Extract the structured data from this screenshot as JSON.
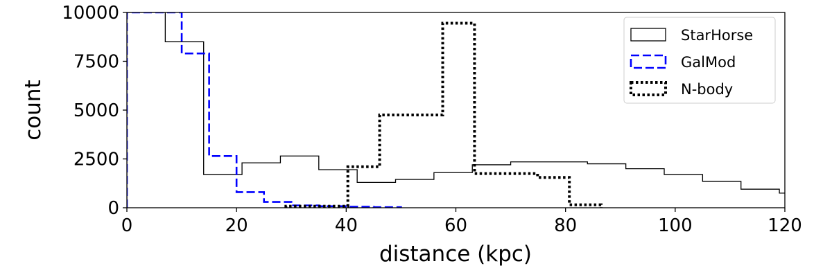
{
  "chart_data": {
    "type": "histogram-step",
    "xlabel": "distance (kpc)",
    "ylabel": "count",
    "xlim": [
      0,
      120
    ],
    "ylim": [
      0,
      10000
    ],
    "xticks": [
      0,
      20,
      40,
      60,
      80,
      100,
      120
    ],
    "yticks": [
      0,
      2500,
      5000,
      7500,
      10000
    ],
    "legend_position": "top-right",
    "grid": false,
    "series": [
      {
        "name": "StarHorse",
        "color": "#000000",
        "style": "solid",
        "edges": [
          0,
          7,
          14,
          21,
          28,
          35,
          42,
          49,
          56,
          63,
          70,
          77,
          84,
          91,
          98,
          105,
          112,
          119,
          126
        ],
        "values": [
          10000,
          8500,
          1700,
          2300,
          2650,
          1950,
          1300,
          1450,
          1800,
          2200,
          2350,
          2350,
          2250,
          2000,
          1700,
          1350,
          950,
          750
        ]
      },
      {
        "name": "GalMod",
        "color": "#0000ff",
        "style": "dashed",
        "edges": [
          0,
          5,
          10,
          15,
          20,
          25,
          30,
          35,
          40,
          45,
          50
        ],
        "values": [
          10000,
          10000,
          7900,
          2650,
          800,
          300,
          120,
          80,
          50,
          30
        ]
      },
      {
        "name": "N-body",
        "color": "#000000",
        "style": "dotted",
        "edges": [
          29,
          34.5,
          40.3,
          46.1,
          51.8,
          57.6,
          63.4,
          69.2,
          74.9,
          80.7,
          86.5
        ],
        "values": [
          80,
          80,
          2100,
          4750,
          4750,
          9450,
          1750,
          1750,
          1550,
          150
        ]
      }
    ]
  }
}
